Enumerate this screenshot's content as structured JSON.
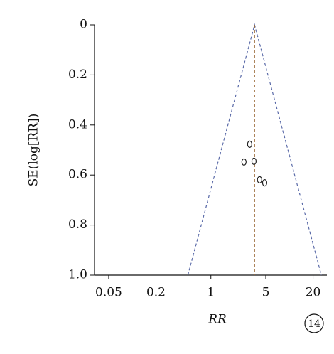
{
  "chart_data": {
    "type": "scatter",
    "y_label": "SE(log[RR])",
    "x_label": "RR",
    "annotation": "14",
    "x": [
      3.12,
      2.64,
      3.54,
      4.17,
      4.84
    ],
    "values": [
      0.477,
      0.548,
      0.545,
      0.619,
      0.631
    ],
    "color": "#222222",
    "reference_line": {
      "x": 3.6,
      "color": "#9a6a3a"
    },
    "funnel": {
      "x": [
        0.51,
        3.6,
        25.5
      ],
      "y": [
        1,
        0,
        1
      ],
      "color": "#5a6aa8"
    },
    "xlog": true,
    "xlim": [
      0.033,
      30
    ],
    "xticks": [
      0.05,
      0.2,
      1,
      5,
      20
    ],
    "ylim": [
      0,
      1
    ],
    "yinverted": true,
    "yticks": [
      0,
      0.2,
      0.4,
      0.6,
      0.8,
      {
        "value": 1,
        "label": "1.0"
      }
    ]
  }
}
